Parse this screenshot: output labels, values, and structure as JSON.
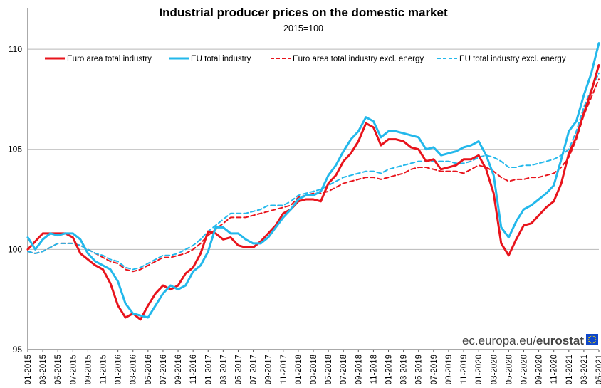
{
  "chart_data": {
    "type": "line",
    "title": "Industrial producer prices on the domestic market",
    "subtitle": "2015=100",
    "xlabel": "",
    "ylabel": "",
    "ylim": [
      95,
      110.5
    ],
    "yticks": [
      95,
      100,
      105,
      110
    ],
    "grid": "horizontal",
    "legend_position": "top",
    "tick_labels": [
      "01-2015",
      "03-2015",
      "05-2015",
      "07-2015",
      "09-2015",
      "11-2015",
      "01-2016",
      "03-2016",
      "05-2016",
      "07-2016",
      "09-2016",
      "11-2016",
      "01-2017",
      "03-2017",
      "05-2017",
      "07-2017",
      "09-2017",
      "11-2017",
      "01-2018",
      "03-2018",
      "05-2018",
      "07-2018",
      "09-2018",
      "11-2018",
      "01-2019",
      "03-2019",
      "05-2019",
      "07-2019",
      "09-2019",
      "11-2019",
      "01-2020",
      "03-2020",
      "05-2020",
      "07-2020",
      "09-2020",
      "11-2020",
      "01-2021",
      "03-2021",
      "05-2021"
    ],
    "x": [
      "01-2015",
      "02-2015",
      "03-2015",
      "04-2015",
      "05-2015",
      "06-2015",
      "07-2015",
      "08-2015",
      "09-2015",
      "10-2015",
      "11-2015",
      "12-2015",
      "01-2016",
      "02-2016",
      "03-2016",
      "04-2016",
      "05-2016",
      "06-2016",
      "07-2016",
      "08-2016",
      "09-2016",
      "10-2016",
      "11-2016",
      "12-2016",
      "01-2017",
      "02-2017",
      "03-2017",
      "04-2017",
      "05-2017",
      "06-2017",
      "07-2017",
      "08-2017",
      "09-2017",
      "10-2017",
      "11-2017",
      "12-2017",
      "01-2018",
      "02-2018",
      "03-2018",
      "04-2018",
      "05-2018",
      "06-2018",
      "07-2018",
      "08-2018",
      "09-2018",
      "10-2018",
      "11-2018",
      "12-2018",
      "01-2019",
      "02-2019",
      "03-2019",
      "04-2019",
      "05-2019",
      "06-2019",
      "07-2019",
      "08-2019",
      "09-2019",
      "10-2019",
      "11-2019",
      "12-2019",
      "01-2020",
      "02-2020",
      "03-2020",
      "04-2020",
      "05-2020",
      "06-2020",
      "07-2020",
      "08-2020",
      "09-2020",
      "10-2020",
      "11-2020",
      "12-2020",
      "01-2021",
      "02-2021",
      "03-2021",
      "04-2021",
      "05-2021"
    ],
    "series": [
      {
        "name": "Euro area total industry",
        "color": "#e8141c",
        "dash": "solid",
        "values": [
          100.0,
          100.4,
          100.8,
          100.8,
          100.8,
          100.8,
          100.6,
          99.8,
          99.5,
          99.2,
          99.0,
          98.3,
          97.2,
          96.6,
          96.8,
          96.5,
          97.2,
          97.8,
          98.2,
          98.0,
          98.2,
          98.8,
          99.1,
          99.8,
          100.9,
          100.8,
          100.5,
          100.6,
          100.2,
          100.1,
          100.1,
          100.4,
          100.8,
          101.2,
          101.8,
          102.0,
          102.4,
          102.5,
          102.5,
          102.4,
          103.3,
          103.7,
          104.4,
          104.8,
          105.4,
          106.3,
          106.1,
          105.2,
          105.5,
          105.5,
          105.4,
          105.1,
          105.0,
          104.4,
          104.5,
          104.0,
          104.1,
          104.2,
          104.5,
          104.5,
          104.7,
          104.0,
          102.8,
          100.3,
          99.7,
          100.5,
          101.2,
          101.3,
          101.7,
          102.1,
          102.4,
          103.3,
          104.8,
          105.6,
          106.8,
          107.9,
          109.2
        ]
      },
      {
        "name": "EU total industry",
        "color": "#23b8eb",
        "dash": "solid",
        "values": [
          100.6,
          100.0,
          100.5,
          100.8,
          100.7,
          100.8,
          100.8,
          100.5,
          99.8,
          99.4,
          99.2,
          99.0,
          98.4,
          97.3,
          96.8,
          96.7,
          96.6,
          97.2,
          97.8,
          98.2,
          98.0,
          98.2,
          98.9,
          99.2,
          99.9,
          101.1,
          101.1,
          100.8,
          100.8,
          100.5,
          100.3,
          100.3,
          100.6,
          101.1,
          101.6,
          102.0,
          102.5,
          102.7,
          102.7,
          102.9,
          103.7,
          104.2,
          104.9,
          105.5,
          105.9,
          106.6,
          106.4,
          105.6,
          105.9,
          105.9,
          105.8,
          105.7,
          105.6,
          105.0,
          105.1,
          104.7,
          104.8,
          104.9,
          105.1,
          105.2,
          105.4,
          104.7,
          103.7,
          101.1,
          100.6,
          101.4,
          102.0,
          102.2,
          102.5,
          102.8,
          103.2,
          104.5,
          105.9,
          106.4,
          107.7,
          108.8,
          110.3
        ]
      },
      {
        "name": "Euro area total industry excl. energy",
        "color": "#e8141c",
        "dash": "dashed",
        "values": [
          99.9,
          99.8,
          99.9,
          100.1,
          100.3,
          100.3,
          100.3,
          100.2,
          100.0,
          99.8,
          99.6,
          99.4,
          99.3,
          99.0,
          98.9,
          99.0,
          99.2,
          99.4,
          99.6,
          99.6,
          99.7,
          99.8,
          100.0,
          100.3,
          100.7,
          101.0,
          101.3,
          101.6,
          101.6,
          101.6,
          101.7,
          101.8,
          101.9,
          102.0,
          102.1,
          102.2,
          102.6,
          102.7,
          102.8,
          102.8,
          102.9,
          103.1,
          103.3,
          103.4,
          103.5,
          103.6,
          103.6,
          103.5,
          103.6,
          103.7,
          103.8,
          104.0,
          104.1,
          104.1,
          104.0,
          103.9,
          103.9,
          103.9,
          103.8,
          104.0,
          104.2,
          104.1,
          103.9,
          103.6,
          103.4,
          103.5,
          103.5,
          103.6,
          103.6,
          103.7,
          103.8,
          104.1,
          104.6,
          105.5,
          106.7,
          107.6,
          108.5
        ]
      },
      {
        "name": "EU total industry excl. energy",
        "color": "#23b8eb",
        "dash": "dashed",
        "values": [
          99.9,
          99.8,
          99.9,
          100.1,
          100.3,
          100.3,
          100.3,
          100.2,
          100.0,
          99.8,
          99.7,
          99.5,
          99.4,
          99.1,
          99.0,
          99.1,
          99.3,
          99.5,
          99.7,
          99.7,
          99.8,
          100.0,
          100.2,
          100.5,
          100.9,
          101.2,
          101.5,
          101.8,
          101.8,
          101.8,
          101.9,
          102.0,
          102.2,
          102.2,
          102.2,
          102.4,
          102.7,
          102.8,
          102.9,
          103.0,
          103.2,
          103.4,
          103.6,
          103.7,
          103.8,
          103.9,
          103.9,
          103.8,
          104.0,
          104.1,
          104.2,
          104.3,
          104.4,
          104.4,
          104.4,
          104.4,
          104.4,
          104.3,
          104.3,
          104.4,
          104.6,
          104.7,
          104.6,
          104.4,
          104.1,
          104.1,
          104.2,
          104.2,
          104.3,
          104.4,
          104.5,
          104.7,
          105.0,
          105.9,
          107.1,
          108.0,
          108.8
        ]
      }
    ]
  },
  "source": {
    "prefix": "ec.europa.eu/",
    "brand": "eurostat"
  }
}
